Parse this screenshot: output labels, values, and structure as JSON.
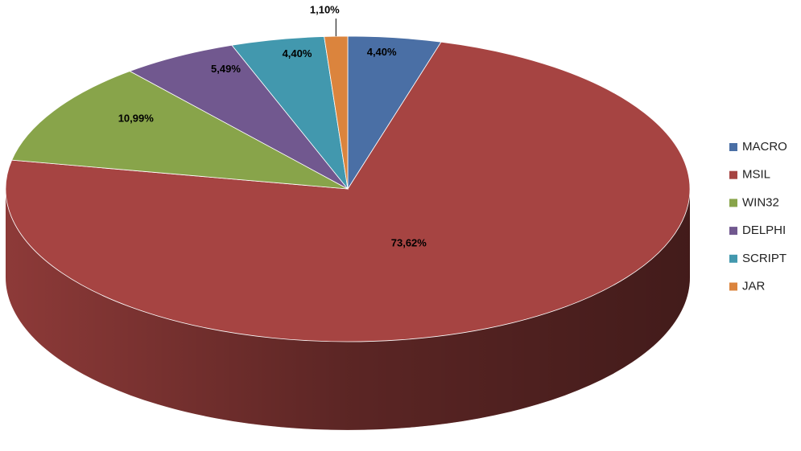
{
  "chart_data": {
    "type": "pie",
    "categories": [
      "MACRO",
      "MSIL",
      "WIN32",
      "DELPHI",
      "SCRIPT",
      "JAR"
    ],
    "values": [
      4.4,
      73.62,
      10.99,
      5.49,
      4.4,
      1.1
    ],
    "value_labels": [
      "4,40%",
      "73,62%",
      "10,99%",
      "5,49%",
      "4,40%",
      "1,10%"
    ],
    "colors": [
      "#4a6fa5",
      "#a64442",
      "#88a44a",
      "#71588f",
      "#4298ae",
      "#db843d"
    ],
    "legend": "right"
  }
}
